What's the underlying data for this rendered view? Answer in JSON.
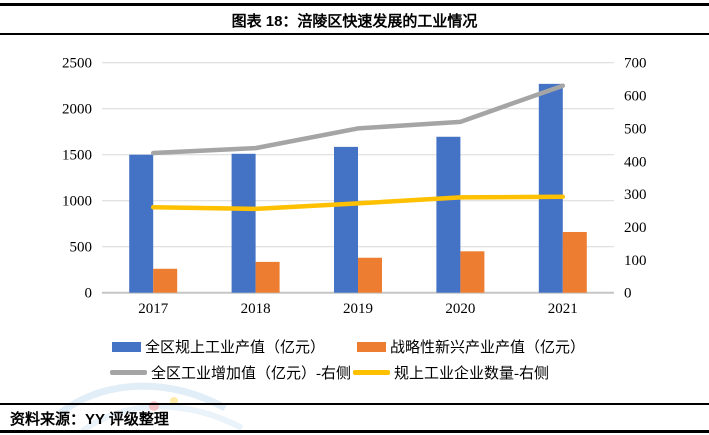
{
  "header": {
    "title": "图表 18：涪陵区快速发展的工业情况"
  },
  "footer": {
    "source_label": "资料来源：YY 评级整理"
  },
  "colors": {
    "bar_blue": "#4472C4",
    "bar_orange": "#ED7D31",
    "line_gray": "#A5A5A5",
    "line_yellow": "#FFC000",
    "gridline": "#D9D9D9",
    "axis_line": "#C6C6C6",
    "text": "#000000"
  },
  "chart_data": {
    "type": "bar",
    "subtype": "combo-bar-line-dual-axis",
    "title": "图表 18：涪陵区快速发展的工业情况",
    "categories": [
      "2017",
      "2018",
      "2019",
      "2020",
      "2021"
    ],
    "series": [
      {
        "name": "全区规上工业产值（亿元）",
        "type": "bar",
        "axis": "left",
        "color": "#4472C4",
        "values": [
          1500,
          1510,
          1585,
          1695,
          2270
        ]
      },
      {
        "name": "战略性新兴产业产值（亿元）",
        "type": "bar",
        "axis": "left",
        "color": "#ED7D31",
        "values": [
          260,
          335,
          380,
          450,
          660
        ]
      },
      {
        "name": "全区工业增加值（亿元）-右侧",
        "type": "line",
        "axis": "right",
        "color": "#A5A5A5",
        "values": [
          425,
          440,
          500,
          520,
          630
        ]
      },
      {
        "name": "规上工业企业数量-右侧",
        "type": "line",
        "axis": "right",
        "color": "#FFC000",
        "values": [
          260,
          255,
          272,
          290,
          292
        ]
      }
    ],
    "left_axis": {
      "min": 0,
      "max": 2500,
      "step": 500,
      "ticks": [
        "0",
        "500",
        "1000",
        "1500",
        "2000",
        "2500"
      ]
    },
    "right_axis": {
      "min": 0,
      "max": 700,
      "step": 100,
      "ticks": [
        "0",
        "100",
        "200",
        "300",
        "400",
        "500",
        "600",
        "700"
      ]
    },
    "grid": true,
    "legend_position": "bottom"
  }
}
